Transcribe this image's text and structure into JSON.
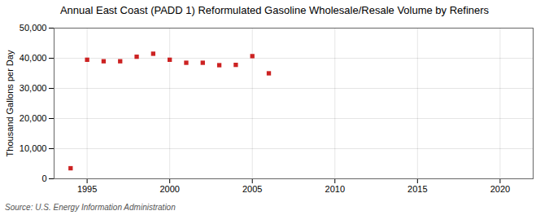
{
  "chart_data": {
    "type": "scatter",
    "title": "Annual East Coast (PADD 1) Reformulated Gasoline Wholesale/Resale Volume by Refiners",
    "ylabel": "Thousand Gallons per Day",
    "source": "Source: U.S. Energy Information Administration",
    "x": [
      1994,
      1995,
      1996,
      1997,
      1998,
      1999,
      2000,
      2001,
      2002,
      2003,
      2004,
      2005,
      2006
    ],
    "values": [
      3500,
      39500,
      39000,
      39000,
      40500,
      41500,
      39500,
      38500,
      38500,
      37700,
      37800,
      40700,
      35000
    ],
    "color": "#cc2222",
    "marker": "square",
    "xlim": [
      1993,
      2022
    ],
    "xticks": [
      1995,
      2000,
      2005,
      2010,
      2015,
      2020
    ],
    "ylim": [
      0,
      50000
    ],
    "yticks": [
      0,
      {
        "value": 10000,
        "label": "10,000"
      },
      {
        "value": 20000,
        "label": "20,000"
      },
      {
        "value": 30000,
        "label": "30,000"
      },
      {
        "value": 40000,
        "label": "40,000"
      },
      {
        "value": 50000,
        "label": "50,000"
      }
    ],
    "grid": true
  }
}
